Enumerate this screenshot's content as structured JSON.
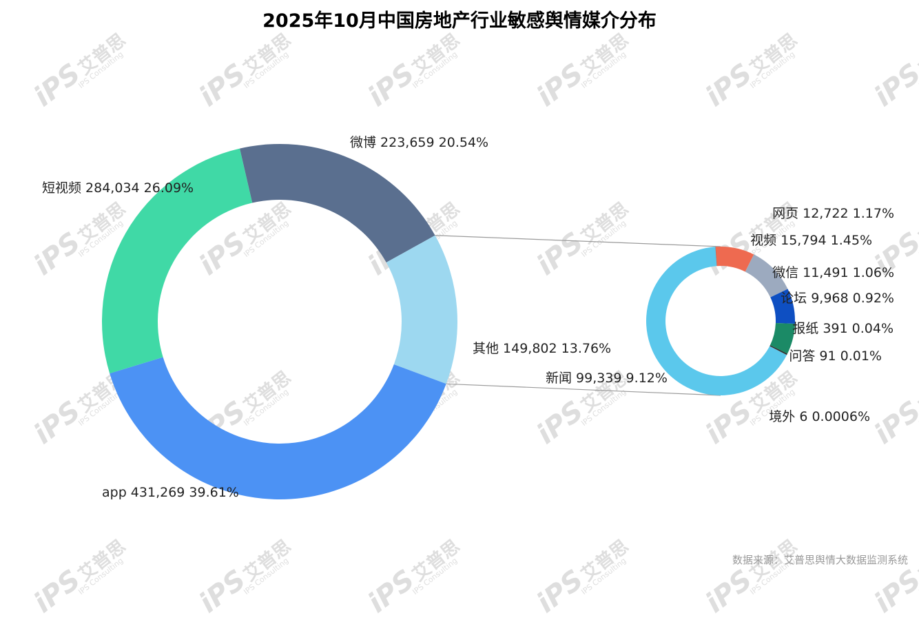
{
  "chart_data": {
    "type": "pie",
    "title": "2025年10月中国房地产行业敏感舆情媒介分布",
    "main": {
      "slices": [
        {
          "name": "微博",
          "value": 223659,
          "value_label": "223,659",
          "percent": "20.54%",
          "color": "#5a6f8f"
        },
        {
          "name": "其他",
          "value": 149802,
          "value_label": "149,802",
          "percent": "13.76%",
          "color": "#9dd8f0"
        },
        {
          "name": "app",
          "value": 431269,
          "value_label": "431,269",
          "percent": "39.61%",
          "color": "#4c92f4"
        },
        {
          "name": "短视频",
          "value": 284034,
          "value_label": "284,034",
          "percent": "26.09%",
          "color": "#40d9a6"
        }
      ]
    },
    "detail": {
      "slices": [
        {
          "name": "网页",
          "value": 12722,
          "value_label": "12,722",
          "percent": "1.17%",
          "color": "#ee6a50"
        },
        {
          "name": "视频",
          "value": 15794,
          "value_label": "15,794",
          "percent": "1.45%",
          "color": "#9caabf"
        },
        {
          "name": "微信",
          "value": 11491,
          "value_label": "11,491",
          "percent": "1.06%",
          "color": "#0e4fc2"
        },
        {
          "name": "论坛",
          "value": 9968,
          "value_label": "9,968",
          "percent": "0.92%",
          "color": "#1b8a66"
        },
        {
          "name": "报纸",
          "value": 391,
          "value_label": "391",
          "percent": "0.04%",
          "color": "#2b2b2b"
        },
        {
          "name": "问答",
          "value": 91,
          "value_label": "91",
          "percent": "0.01%",
          "color": "#444444"
        },
        {
          "name": "新闻",
          "value": 99339,
          "value_label": "99,339",
          "percent": "9.12%",
          "color": "#5bc8ec"
        },
        {
          "name": "境外",
          "value": 6,
          "value_label": "6",
          "percent": "0.0006%",
          "color": "#666666"
        }
      ]
    },
    "watermark": {
      "logo": "iPS",
      "text": "艾普思",
      "english": "IPS Consulting"
    },
    "source": "数据来源：艾普思舆情大数据监测系统"
  }
}
